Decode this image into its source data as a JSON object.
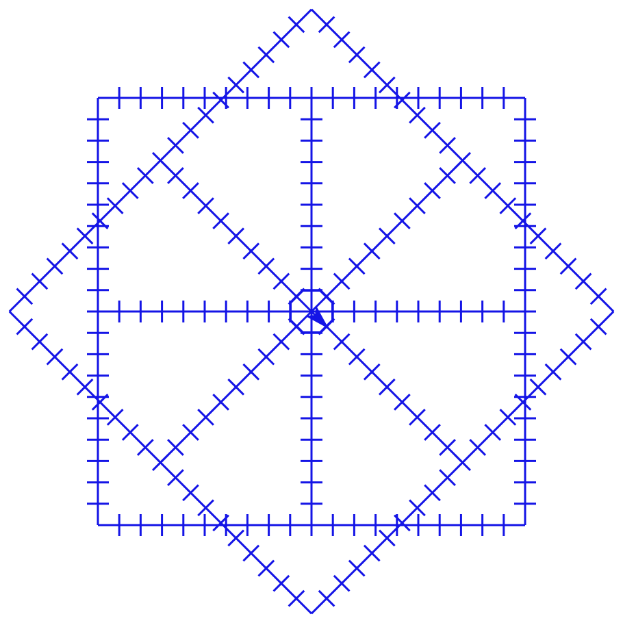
{
  "figure": {
    "description": "",
    "stroke_color": "#1414e6",
    "background_color": "#ffffff",
    "shapes": [
      {
        "kind": "square",
        "rotation_deg": 0,
        "tick_count_per_side": 20
      },
      {
        "kind": "square",
        "rotation_deg": 45,
        "tick_count_per_side": 20
      }
    ],
    "spokes": [
      {
        "angle_deg": 0
      },
      {
        "angle_deg": 45
      },
      {
        "angle_deg": 90
      },
      {
        "angle_deg": 135
      },
      {
        "angle_deg": 180
      },
      {
        "angle_deg": 225
      },
      {
        "angle_deg": 270
      },
      {
        "angle_deg": 315
      }
    ],
    "center_marker": {
      "kind": "octagon"
    },
    "turtle_cursor": {
      "kind": "arrowhead",
      "heading_deg": 45
    }
  }
}
